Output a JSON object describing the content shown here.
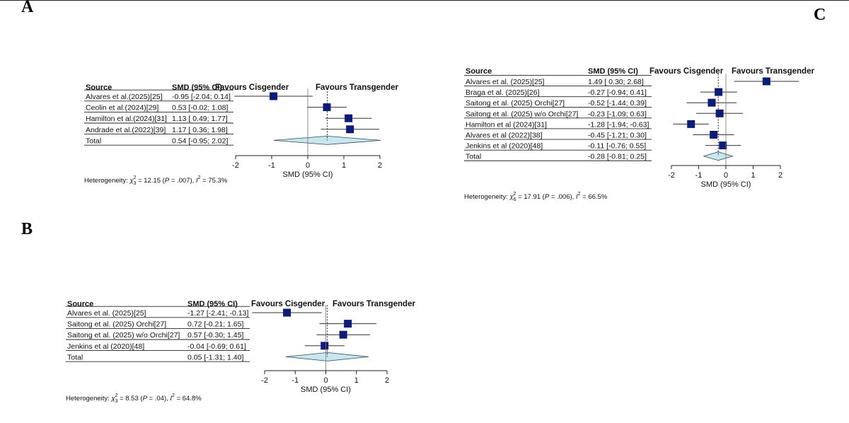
{
  "panels": {
    "a": {
      "letter": "A"
    },
    "b": {
      "letter": "B"
    },
    "c": {
      "letter": "C"
    }
  },
  "header": {
    "source": "Source",
    "smd": "SMD (95% CI)",
    "favours_left": "Favours Cisgender",
    "favours_right": "Favours Transgender"
  },
  "chart_data": [
    {
      "panel": "A",
      "type": "forest",
      "xlabel": "SMD (95% CI)",
      "xlim": [
        -2,
        2
      ],
      "xticks": [
        "-2",
        "-1",
        "0",
        "1",
        "2"
      ],
      "studies": [
        {
          "source": "Alvares et al.(2025)[25]",
          "ci_text": "-0.95 [-2.04; 0.14]",
          "smd": -0.95,
          "lo": -2.04,
          "hi": 0.14
        },
        {
          "source": "Ceolin et al.(2024)[29]",
          "ci_text": "0.53 [-0.02; 1.08]",
          "smd": 0.53,
          "lo": -0.02,
          "hi": 1.08
        },
        {
          "source": "Hamilton et al.(2024)[31]",
          "ci_text": "1.13 [ 0.49; 1.77]",
          "smd": 1.13,
          "lo": 0.49,
          "hi": 1.77
        },
        {
          "source": "Andrade et al.(2022)[39]",
          "ci_text": "1.17 [ 0.36; 1.98]",
          "smd": 1.17,
          "lo": 0.36,
          "hi": 1.98
        }
      ],
      "total": {
        "source": "Total",
        "ci_text": "0.54 [-0.95; 2.02]",
        "smd": 0.54,
        "lo": -0.95,
        "hi": 2.02
      },
      "heterogeneity": {
        "prefix": "Heterogeneity: ",
        "chi": "χ",
        "sub": "3",
        "sup": "2",
        "stat": " = 12.15 (",
        "p": "P",
        "p_rest": " = .007), ",
        "i": "I",
        "i_sup": "2",
        "i_rest": " = 75.3%"
      }
    },
    {
      "panel": "B",
      "type": "forest",
      "xlabel": "SMD (95% CI)",
      "xlim": [
        -2,
        2
      ],
      "xticks": [
        "-2",
        "-1",
        "0",
        "1",
        "2"
      ],
      "studies": [
        {
          "source": "Alvares et al. (2025)[25]",
          "ci_text": "-1.27 [-2.41; -0.13]",
          "smd": -1.27,
          "lo": -2.41,
          "hi": -0.13
        },
        {
          "source": "Saitong et al. (2025)  Orchi[27]",
          "ci_text": "0.72 [-0.21; 1.65]",
          "smd": 0.72,
          "lo": -0.21,
          "hi": 1.65
        },
        {
          "source": "Saitong et al. (2025)  w/o Orchi[27]",
          "ci_text": "0.57 [-0.30; 1.45]",
          "smd": 0.57,
          "lo": -0.3,
          "hi": 1.45
        },
        {
          "source": "Jenkins et al (2020)[48]",
          "ci_text": "-0.04 [-0.69; 0.61]",
          "smd": -0.04,
          "lo": -0.69,
          "hi": 0.61
        }
      ],
      "total": {
        "source": "Total",
        "ci_text": "0.05 [-1.31; 1.40]",
        "smd": 0.05,
        "lo": -1.31,
        "hi": 1.4
      },
      "heterogeneity": {
        "prefix": "Heterogeneity: ",
        "chi": "χ",
        "sub": "3",
        "sup": "2",
        "stat": " = 8.53 (",
        "p": "P",
        "p_rest": " = .04), ",
        "i": "I",
        "i_sup": "2",
        "i_rest": " = 64.8%"
      }
    },
    {
      "panel": "C",
      "type": "forest",
      "xlabel": "SMD (95% CI)",
      "xlim": [
        -2,
        2
      ],
      "xticks": [
        "-2",
        "-1",
        "0",
        "1",
        "2"
      ],
      "studies": [
        {
          "source": "Alvares et al. (2025)[25]",
          "ci_text": "1.49 [ 0.30;  2.68]",
          "smd": 1.49,
          "lo": 0.3,
          "hi": 2.68
        },
        {
          "source": "Braga et al. (2025)[26]",
          "ci_text": "-0.27 [-0.94;  0.41]",
          "smd": -0.27,
          "lo": -0.94,
          "hi": 0.41
        },
        {
          "source": "Saitong et al. (2025)  Orchi[27]",
          "ci_text": "-0.52 [-1.44;  0.39]",
          "smd": -0.52,
          "lo": -1.44,
          "hi": 0.39
        },
        {
          "source": "Saitong et al. (2025)  w/o Orchi[27]",
          "ci_text": "-0.23 [-1.09;  0.63]",
          "smd": -0.23,
          "lo": -1.09,
          "hi": 0.63
        },
        {
          "source": "Hamilton et al (2024)[31]",
          "ci_text": "-1.28 [-1.94; -0.63]",
          "smd": -1.28,
          "lo": -1.94,
          "hi": -0.63
        },
        {
          "source": "Alvares et al (2022)[38]",
          "ci_text": "-0.45 [-1.21;  0.30]",
          "smd": -0.45,
          "lo": -1.21,
          "hi": 0.3
        },
        {
          "source": "Jenkins et al (2020)[48]",
          "ci_text": "-0.11 [-0.76;  0.55]",
          "smd": -0.11,
          "lo": -0.76,
          "hi": 0.55
        }
      ],
      "total": {
        "source": "Total",
        "ci_text": "-0.28 [-0.81;  0.25]",
        "smd": -0.28,
        "lo": -0.81,
        "hi": 0.25
      },
      "heterogeneity": {
        "prefix": "Heterogeneity: ",
        "chi": "χ",
        "sub": "6",
        "sup": "2",
        "stat": " = 17.91 (",
        "p": "P",
        "p_rest": " = .006), ",
        "i": "I",
        "i_sup": "2",
        "i_rest": " = 66.5%"
      }
    }
  ],
  "colors": {
    "marker": "#0d1b7a",
    "diamond": "#c9e6ee",
    "diamond_stroke": "#2c4a58",
    "line": "#333333"
  }
}
